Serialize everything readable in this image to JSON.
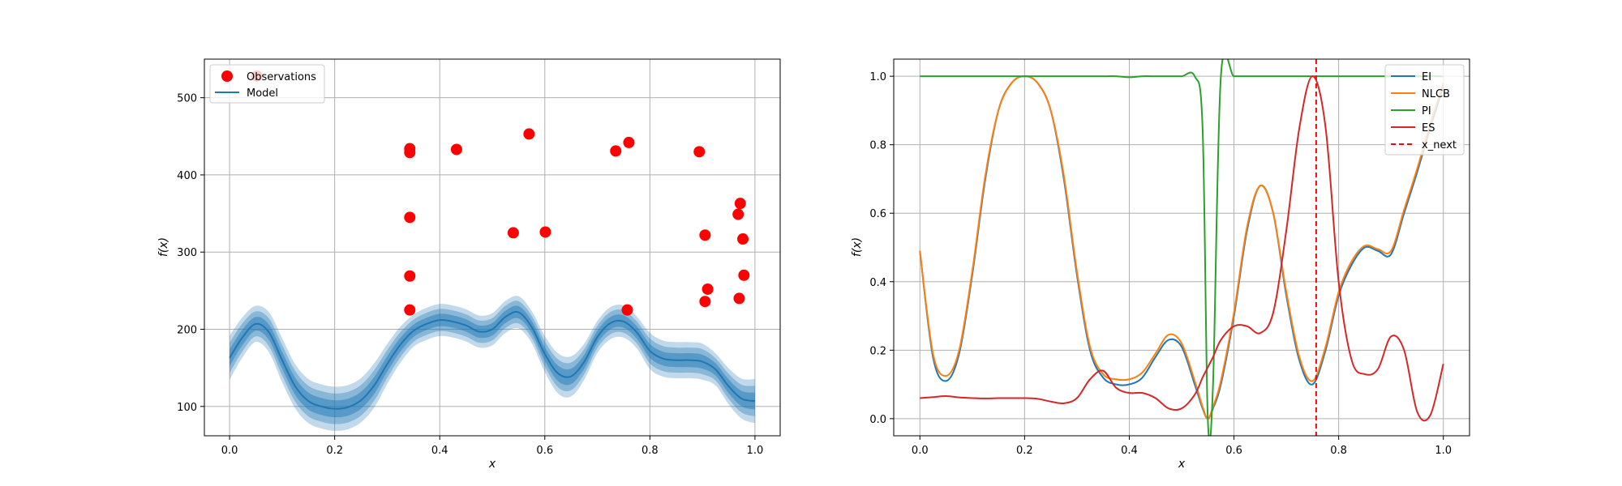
{
  "chart_data": [
    {
      "type": "scatter",
      "xlabel": "x",
      "ylabel": "f(x)",
      "xlim": [
        -0.048,
        1.048
      ],
      "ylim": [
        62,
        550
      ],
      "xticks": [
        0.0,
        0.2,
        0.4,
        0.6,
        0.8,
        1.0
      ],
      "xtick_labels": [
        "0.0",
        "0.2",
        "0.4",
        "0.6",
        "0.8",
        "1.0"
      ],
      "yticks": [
        100,
        200,
        300,
        400,
        500
      ],
      "ytick_labels": [
        "100",
        "200",
        "300",
        "400",
        "500"
      ],
      "grid": true,
      "legend_position": "upper left",
      "colors": {
        "observations": "#ff0000",
        "model": "#1f77b4"
      },
      "legend": [
        {
          "label": "Observations",
          "marker": "circle",
          "color": "#ff0000"
        },
        {
          "label": "Model",
          "marker": "line",
          "color": "#1f77b4"
        }
      ],
      "observations": [
        {
          "x": 0.052,
          "y": 528
        },
        {
          "x": 0.343,
          "y": 434
        },
        {
          "x": 0.343,
          "y": 429
        },
        {
          "x": 0.343,
          "y": 345
        },
        {
          "x": 0.343,
          "y": 269
        },
        {
          "x": 0.343,
          "y": 225
        },
        {
          "x": 0.432,
          "y": 433
        },
        {
          "x": 0.54,
          "y": 325
        },
        {
          "x": 0.57,
          "y": 453
        },
        {
          "x": 0.601,
          "y": 326
        },
        {
          "x": 0.735,
          "y": 431
        },
        {
          "x": 0.757,
          "y": 225
        },
        {
          "x": 0.76,
          "y": 442
        },
        {
          "x": 0.894,
          "y": 430
        },
        {
          "x": 0.905,
          "y": 322
        },
        {
          "x": 0.905,
          "y": 236
        },
        {
          "x": 0.91,
          "y": 252
        },
        {
          "x": 0.968,
          "y": 349
        },
        {
          "x": 0.97,
          "y": 240
        },
        {
          "x": 0.972,
          "y": 363
        },
        {
          "x": 0.977,
          "y": 317
        },
        {
          "x": 0.979,
          "y": 270
        }
      ],
      "model": {
        "x": [
          0.0,
          0.025,
          0.05,
          0.075,
          0.1,
          0.125,
          0.15,
          0.175,
          0.2,
          0.225,
          0.25,
          0.275,
          0.3,
          0.325,
          0.35,
          0.375,
          0.4,
          0.425,
          0.45,
          0.475,
          0.5,
          0.525,
          0.55,
          0.575,
          0.6,
          0.625,
          0.65,
          0.675,
          0.7,
          0.725,
          0.75,
          0.775,
          0.8,
          0.825,
          0.85,
          0.875,
          0.9,
          0.925,
          0.95,
          0.975,
          1.0
        ],
        "mean": [
          163,
          190,
          207,
          196,
          160,
          126,
          107,
          100,
          97,
          99,
          108,
          127,
          155,
          180,
          198,
          207,
          212,
          210,
          205,
          197,
          200,
          216,
          222,
          203,
          168,
          143,
          139,
          158,
          190,
          208,
          210,
          196,
          172,
          162,
          160,
          160,
          158,
          148,
          126,
          110,
          107
        ],
        "band_width": [
          11,
          10,
          9,
          10,
          11,
          11,
          11,
          11,
          11,
          11,
          11,
          11,
          10,
          9,
          8,
          8,
          8,
          8,
          8,
          8,
          8,
          8,
          8,
          8,
          9,
          10,
          10,
          9,
          8,
          8,
          8,
          8,
          9,
          9,
          9,
          9,
          9,
          8,
          9,
          10,
          11
        ]
      }
    },
    {
      "type": "line",
      "xlabel": "x",
      "ylabel": "f(x)",
      "xlim": [
        -0.05,
        1.05
      ],
      "ylim": [
        -0.05,
        1.05
      ],
      "xticks": [
        0.0,
        0.2,
        0.4,
        0.6,
        0.8,
        1.0
      ],
      "xtick_labels": [
        "0.0",
        "0.2",
        "0.4",
        "0.6",
        "0.8",
        "1.0"
      ],
      "yticks": [
        0.0,
        0.2,
        0.4,
        0.6,
        0.8,
        1.0
      ],
      "ytick_labels": [
        "0.0",
        "0.2",
        "0.4",
        "0.6",
        "0.8",
        "1.0"
      ],
      "grid": true,
      "legend_position": "upper right",
      "x_next": 0.757,
      "x": [
        0.0,
        0.025,
        0.05,
        0.075,
        0.1,
        0.125,
        0.15,
        0.175,
        0.2,
        0.225,
        0.25,
        0.275,
        0.3,
        0.325,
        0.35,
        0.375,
        0.4,
        0.425,
        0.45,
        0.475,
        0.5,
        0.525,
        0.54,
        0.55,
        0.56,
        0.575,
        0.6,
        0.625,
        0.65,
        0.675,
        0.7,
        0.725,
        0.75,
        0.775,
        0.8,
        0.825,
        0.85,
        0.875,
        0.9,
        0.925,
        0.95,
        0.975,
        1.0
      ],
      "series": [
        {
          "name": "EI",
          "color": "#1f77b4",
          "dash": "",
          "values": [
            0.49,
            0.18,
            0.11,
            0.19,
            0.42,
            0.7,
            0.9,
            0.98,
            1.0,
            0.98,
            0.9,
            0.7,
            0.42,
            0.2,
            0.12,
            0.1,
            0.1,
            0.12,
            0.18,
            0.23,
            0.21,
            0.1,
            0.03,
            0.0,
            0.03,
            0.1,
            0.3,
            0.55,
            0.68,
            0.6,
            0.36,
            0.17,
            0.1,
            0.2,
            0.36,
            0.45,
            0.5,
            0.49,
            0.48,
            0.6,
            0.72,
            0.85,
            0.97
          ]
        },
        {
          "name": "NLCB",
          "color": "#ff7f0e",
          "dash": "",
          "values": [
            0.49,
            0.19,
            0.125,
            0.2,
            0.43,
            0.71,
            0.9,
            0.98,
            1.0,
            0.98,
            0.9,
            0.71,
            0.43,
            0.21,
            0.13,
            0.115,
            0.115,
            0.135,
            0.19,
            0.245,
            0.22,
            0.11,
            0.035,
            0.0,
            0.035,
            0.11,
            0.31,
            0.56,
            0.68,
            0.6,
            0.37,
            0.18,
            0.11,
            0.21,
            0.37,
            0.46,
            0.505,
            0.495,
            0.49,
            0.61,
            0.73,
            0.86,
            0.98
          ]
        },
        {
          "name": "PI",
          "color": "#2ca02c",
          "dash": "",
          "values": [
            1.0,
            1.0,
            1.0,
            1.0,
            1.0,
            1.0,
            1.0,
            1.0,
            1.0,
            1.0,
            1.0,
            1.0,
            1.0,
            1.0,
            1.0,
            1.0,
            0.997,
            1.0,
            1.0,
            1.0,
            1.0,
            1.0,
            0.85,
            0.0,
            0.1,
            1.0,
            1.0,
            1.0,
            1.0,
            1.0,
            1.0,
            1.0,
            1.0,
            1.0,
            1.0,
            1.0,
            1.0,
            1.0,
            1.0,
            1.0,
            1.0,
            1.0,
            1.0
          ]
        },
        {
          "name": "ES",
          "color": "#d62728",
          "dash": "",
          "values": [
            0.06,
            0.063,
            0.066,
            0.062,
            0.06,
            0.059,
            0.06,
            0.06,
            0.06,
            0.058,
            0.05,
            0.045,
            0.06,
            0.115,
            0.14,
            0.09,
            0.075,
            0.075,
            0.06,
            0.03,
            0.03,
            0.07,
            0.12,
            0.15,
            0.18,
            0.23,
            0.27,
            0.27,
            0.25,
            0.31,
            0.55,
            0.85,
            1.0,
            0.85,
            0.4,
            0.17,
            0.13,
            0.145,
            0.24,
            0.2,
            0.02,
            0.01,
            0.16
          ]
        }
      ],
      "legend": [
        {
          "label": "EI",
          "color": "#1f77b4",
          "dash": ""
        },
        {
          "label": "NLCB",
          "color": "#ff7f0e",
          "dash": ""
        },
        {
          "label": "PI",
          "color": "#2ca02c",
          "dash": ""
        },
        {
          "label": "ES",
          "color": "#d62728",
          "dash": ""
        },
        {
          "label": "x_next",
          "color": "#ff0000",
          "dash": "6,4"
        }
      ]
    }
  ]
}
